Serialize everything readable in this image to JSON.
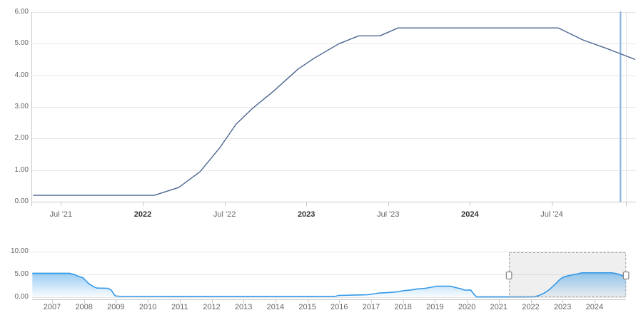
{
  "colors": {
    "background": "#ffffff",
    "grid_line": "#e6e6e6",
    "axis_line": "#c9c9c9",
    "tick_mark": "#c9c9c9",
    "main_series_line": "#4d6690",
    "crosshair_outer": "#bdd4ef",
    "crosshair_inner": "#84aedd",
    "nav_series_line": "#3399e8",
    "nav_fill_top": "rgba(51,153,232,0.5)",
    "nav_fill_bottom": "rgba(51,153,232,0.03)",
    "selection_fill": "rgba(125,125,125,0.12)",
    "selection_border": "#a0a0a0",
    "handle_fill": "#ffffff",
    "handle_border": "#8b8b8b",
    "label_text": "#666666",
    "label_text_bold": "#333333"
  },
  "chart_data": [
    {
      "type": "line",
      "role": "main-rate-chart",
      "title": "",
      "xlabel": "",
      "ylabel": "",
      "ylim": [
        0,
        6
      ],
      "xlim_years": [
        2021.33,
        2025.02
      ],
      "grid": true,
      "legend": false,
      "crosshair_x_year": 2024.92,
      "y_ticks": [
        {
          "label": "6.00",
          "value": 6
        },
        {
          "label": "5.00",
          "value": 5
        },
        {
          "label": "4.00",
          "value": 4
        },
        {
          "label": "3.00",
          "value": 3
        },
        {
          "label": "2.00",
          "value": 2
        },
        {
          "label": "1.00",
          "value": 1
        },
        {
          "label": "0.00",
          "value": 0
        }
      ],
      "x_ticks": [
        {
          "label": "Jul '21",
          "year": 2021.5,
          "bold": false
        },
        {
          "label": "2022",
          "year": 2022.0,
          "bold": true
        },
        {
          "label": "Jul '22",
          "year": 2022.5,
          "bold": false
        },
        {
          "label": "2023",
          "year": 2023.0,
          "bold": true
        },
        {
          "label": "Jul '23",
          "year": 2023.5,
          "bold": false
        },
        {
          "label": "2024",
          "year": 2024.0,
          "bold": true
        },
        {
          "label": "Jul '24",
          "year": 2024.5,
          "bold": false
        }
      ],
      "series": [
        {
          "name": "",
          "points": [
            [
              2021.33,
              0.2
            ],
            [
              2021.6,
              0.2
            ],
            [
              2021.85,
              0.2
            ],
            [
              2022.07,
              0.2
            ],
            [
              2022.22,
              0.45
            ],
            [
              2022.35,
              0.95
            ],
            [
              2022.47,
              1.7
            ],
            [
              2022.57,
              2.45
            ],
            [
              2022.67,
              2.95
            ],
            [
              2022.8,
              3.5
            ],
            [
              2022.95,
              4.2
            ],
            [
              2023.05,
              4.55
            ],
            [
              2023.2,
              5.0
            ],
            [
              2023.32,
              5.25
            ],
            [
              2023.45,
              5.25
            ],
            [
              2023.56,
              5.5
            ],
            [
              2024.54,
              5.5
            ],
            [
              2024.69,
              5.12
            ],
            [
              2024.82,
              4.88
            ],
            [
              2024.92,
              4.68
            ],
            [
              2025.01,
              4.5
            ]
          ]
        }
      ]
    },
    {
      "type": "area",
      "role": "navigator",
      "title": "",
      "ylim": [
        0,
        10
      ],
      "xlim_years": [
        2006.38,
        2025.0
      ],
      "grid": true,
      "legend": false,
      "y_ticks": [
        {
          "label": "10.00",
          "value": 10
        },
        {
          "label": "5.00",
          "value": 5
        },
        {
          "label": "0.00",
          "value": 0
        }
      ],
      "x_labels": [
        {
          "label": "2007",
          "year": 2007
        },
        {
          "label": "2008",
          "year": 2008
        },
        {
          "label": "2009",
          "year": 2009
        },
        {
          "label": "2010",
          "year": 2010
        },
        {
          "label": "2011",
          "year": 2011
        },
        {
          "label": "2012",
          "year": 2012
        },
        {
          "label": "2013",
          "year": 2013
        },
        {
          "label": "2014",
          "year": 2014
        },
        {
          "label": "2015",
          "year": 2015
        },
        {
          "label": "2016",
          "year": 2016
        },
        {
          "label": "2017",
          "year": 2017
        },
        {
          "label": "2018",
          "year": 2018
        },
        {
          "label": "2019",
          "year": 2019
        },
        {
          "label": "2020",
          "year": 2020
        },
        {
          "label": "2021",
          "year": 2021
        },
        {
          "label": "2022",
          "year": 2022
        },
        {
          "label": "2023",
          "year": 2023
        },
        {
          "label": "2024",
          "year": 2024
        }
      ],
      "selection": {
        "start_year": 2021.32,
        "end_year": 2024.99
      },
      "series": [
        {
          "name": "",
          "points": [
            [
              2006.38,
              5.25
            ],
            [
              2007.55,
              5.25
            ],
            [
              2007.7,
              4.95
            ],
            [
              2007.85,
              4.5
            ],
            [
              2007.97,
              4.25
            ],
            [
              2008.06,
              3.6
            ],
            [
              2008.15,
              2.95
            ],
            [
              2008.3,
              2.3
            ],
            [
              2008.4,
              2.0
            ],
            [
              2008.75,
              1.95
            ],
            [
              2008.85,
              1.6
            ],
            [
              2008.97,
              0.3
            ],
            [
              2009.15,
              0.16
            ],
            [
              2015.85,
              0.14
            ],
            [
              2015.97,
              0.38
            ],
            [
              2016.9,
              0.55
            ],
            [
              2017.05,
              0.7
            ],
            [
              2017.25,
              0.91
            ],
            [
              2017.5,
              1.0
            ],
            [
              2017.8,
              1.16
            ],
            [
              2018.0,
              1.42
            ],
            [
              2018.25,
              1.6
            ],
            [
              2018.45,
              1.82
            ],
            [
              2018.7,
              1.95
            ],
            [
              2018.9,
              2.2
            ],
            [
              2019.05,
              2.4
            ],
            [
              2019.5,
              2.4
            ],
            [
              2019.65,
              2.1
            ],
            [
              2019.8,
              1.88
            ],
            [
              2019.92,
              1.56
            ],
            [
              2020.12,
              1.58
            ],
            [
              2020.22,
              0.65
            ],
            [
              2020.3,
              0.07
            ],
            [
              2021.5,
              0.07
            ],
            [
              2022.1,
              0.1
            ],
            [
              2022.25,
              0.35
            ],
            [
              2022.4,
              0.8
            ],
            [
              2022.5,
              1.25
            ],
            [
              2022.6,
              1.75
            ],
            [
              2022.7,
              2.4
            ],
            [
              2022.8,
              3.1
            ],
            [
              2022.9,
              3.8
            ],
            [
              2023.0,
              4.35
            ],
            [
              2023.15,
              4.65
            ],
            [
              2023.3,
              4.9
            ],
            [
              2023.45,
              5.1
            ],
            [
              2023.6,
              5.35
            ],
            [
              2024.55,
              5.35
            ],
            [
              2024.7,
              5.15
            ],
            [
              2024.85,
              4.8
            ],
            [
              2024.99,
              4.5
            ]
          ]
        }
      ]
    }
  ]
}
